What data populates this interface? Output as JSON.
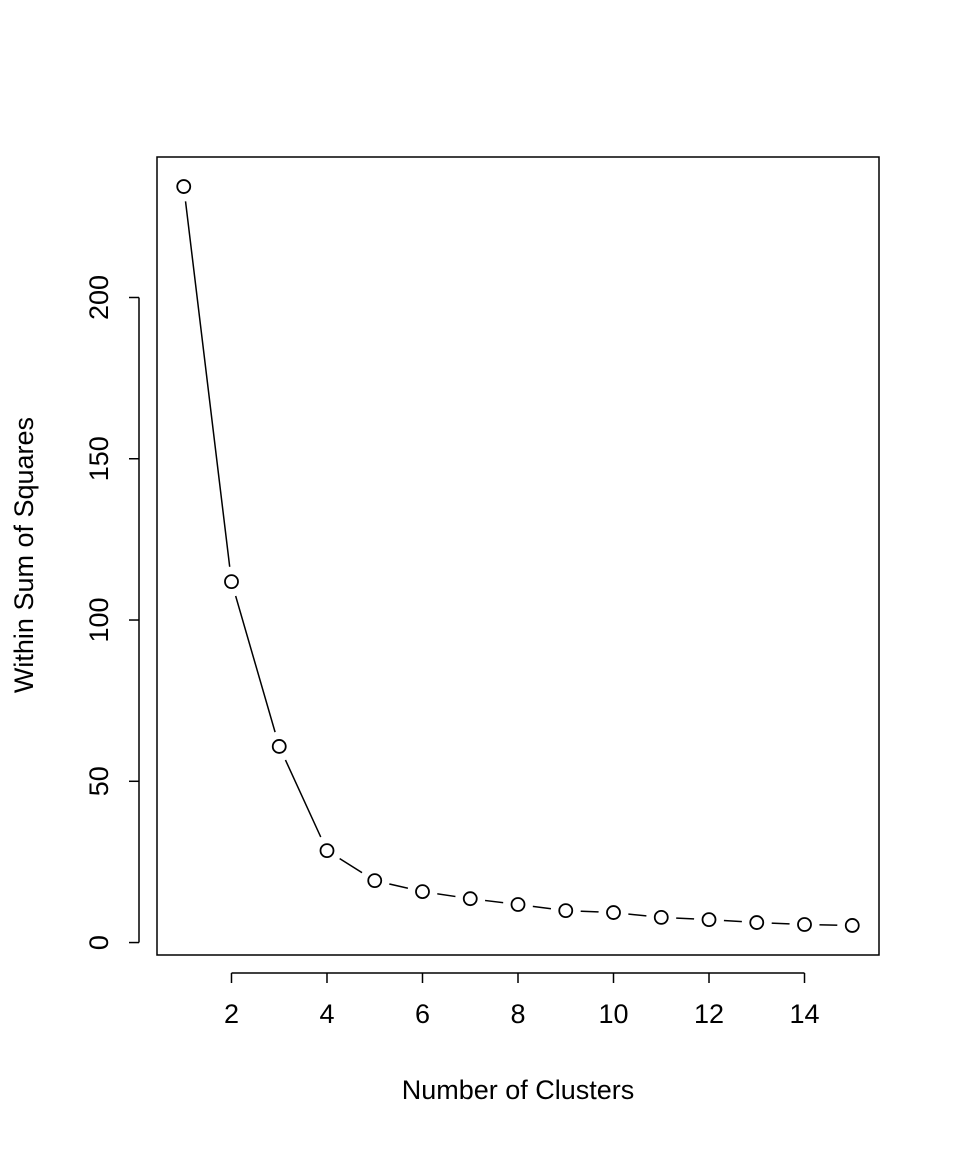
{
  "chart_data": {
    "type": "line",
    "xlabel": "Number of Clusters",
    "ylabel": "Within Sum of Squares",
    "x": [
      1,
      2,
      3,
      4,
      5,
      6,
      7,
      8,
      9,
      10,
      11,
      12,
      13,
      14,
      15
    ],
    "values": [
      234.4,
      111.9,
      60.8,
      28.5,
      19.2,
      15.8,
      13.6,
      11.8,
      9.9,
      9.3,
      7.8,
      7.1,
      6.2,
      5.6,
      5.3
    ],
    "color": "#000000",
    "xlim": [
      0.44,
      15.56
    ],
    "ylim": [
      -3.86,
      243.56
    ],
    "xticks": [
      2,
      4,
      6,
      8,
      10,
      12,
      14
    ],
    "yticks": [
      0,
      50,
      100,
      150,
      200
    ]
  }
}
